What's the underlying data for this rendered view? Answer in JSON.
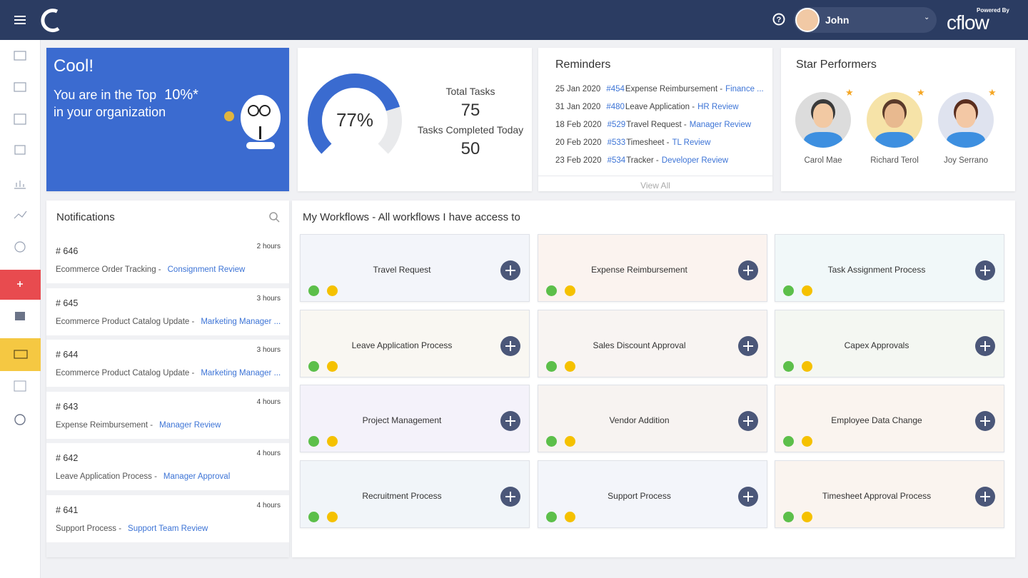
{
  "header": {
    "user": "John",
    "powered_by": "Powered By",
    "brand": "cflow"
  },
  "banner": {
    "title": "Cool!",
    "line1": "You are in the Top",
    "percent": "10%*",
    "line2": "in your organization"
  },
  "tasks": {
    "completion": {
      "value": 77,
      "label": "77%"
    },
    "total_label": "Total Tasks",
    "total": 75,
    "completed_label": "Tasks Completed Today",
    "completed": 50
  },
  "reminders": {
    "title": "Reminders",
    "items": [
      {
        "date": "25 Jan 2020",
        "id": "#454",
        "name": "Expense Reimbursement -",
        "stage": "Finance ..."
      },
      {
        "date": "31 Jan 2020",
        "id": "#480",
        "name": "Leave Application -",
        "stage": "HR Review"
      },
      {
        "date": "18 Feb 2020",
        "id": "#529",
        "name": "Travel Request -",
        "stage": "Manager Review"
      },
      {
        "date": "20 Feb 2020",
        "id": "#533",
        "name": "Timesheet -",
        "stage": "TL Review"
      },
      {
        "date": "23 Feb 2020",
        "id": "#534",
        "name": "Tracker -",
        "stage": "Developer Review"
      }
    ],
    "view_all": "View All"
  },
  "star_performers": {
    "title": "Star Performers",
    "people": [
      "Carol Mae",
      "Richard Terol",
      "Joy Serrano"
    ]
  },
  "notifications": {
    "title": "Notifications",
    "items": [
      {
        "id": "# 646",
        "time": "2 hours",
        "process": "Ecommerce Order Tracking -",
        "stage": "Consignment Review"
      },
      {
        "id": "# 645",
        "time": "3 hours",
        "process": "Ecommerce Product Catalog Update -",
        "stage": "Marketing Manager ..."
      },
      {
        "id": "# 644",
        "time": "3 hours",
        "process": "Ecommerce Product Catalog Update -",
        "stage": "Marketing Manager ..."
      },
      {
        "id": "# 643",
        "time": "4 hours",
        "process": "Expense Reimbursement -",
        "stage": "Manager Review"
      },
      {
        "id": "# 642",
        "time": "4 hours",
        "process": "Leave Application Process -",
        "stage": "Manager Approval"
      },
      {
        "id": "# 641",
        "time": "4 hours",
        "process": "Support Process -",
        "stage": "Support Team Review"
      }
    ]
  },
  "workflows": {
    "title": "My Workflows - All workflows I have access to",
    "items": [
      "Travel Request",
      "Expense Reimbursement",
      "Task Assignment Process",
      "Leave Application Process",
      "Sales Discount Approval",
      "Capex Approvals",
      "Project Management",
      "Vendor Addition",
      "Employee Data Change",
      "Recruitment Process",
      "Support Process",
      "Timesheet Approval Process"
    ]
  }
}
